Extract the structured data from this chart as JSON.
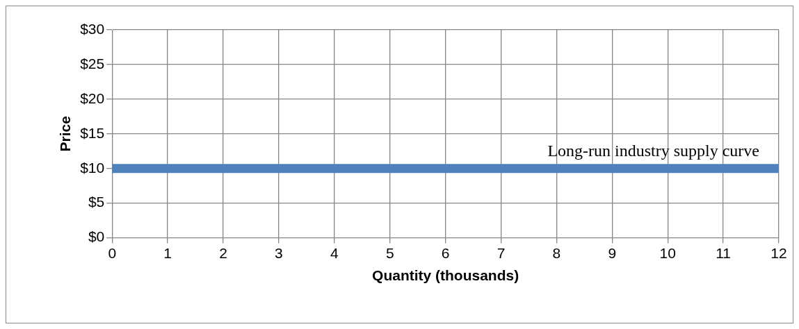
{
  "chart_data": {
    "type": "line",
    "xlabel": "Quantity (thousands)",
    "ylabel": "Price",
    "x": [
      0,
      12
    ],
    "series": [
      {
        "name": "Long-run industry supply curve",
        "color": "#4f81bd",
        "values": [
          10,
          10
        ]
      }
    ],
    "xlim": [
      0,
      12
    ],
    "xticks": [
      0,
      1,
      2,
      3,
      4,
      5,
      6,
      7,
      8,
      9,
      10,
      11,
      12
    ],
    "ylim": [
      0,
      30
    ],
    "yticks": [
      {
        "value": 0,
        "label": "$0"
      },
      {
        "value": 5,
        "label": "$5"
      },
      {
        "value": 10,
        "label": "$10"
      },
      {
        "value": 15,
        "label": "$15"
      },
      {
        "value": 20,
        "label": "$20"
      },
      {
        "value": 25,
        "label": "$25"
      },
      {
        "value": 30,
        "label": "$30"
      }
    ],
    "grid": true,
    "legend": false,
    "marker": "none",
    "line_style": "solid"
  }
}
